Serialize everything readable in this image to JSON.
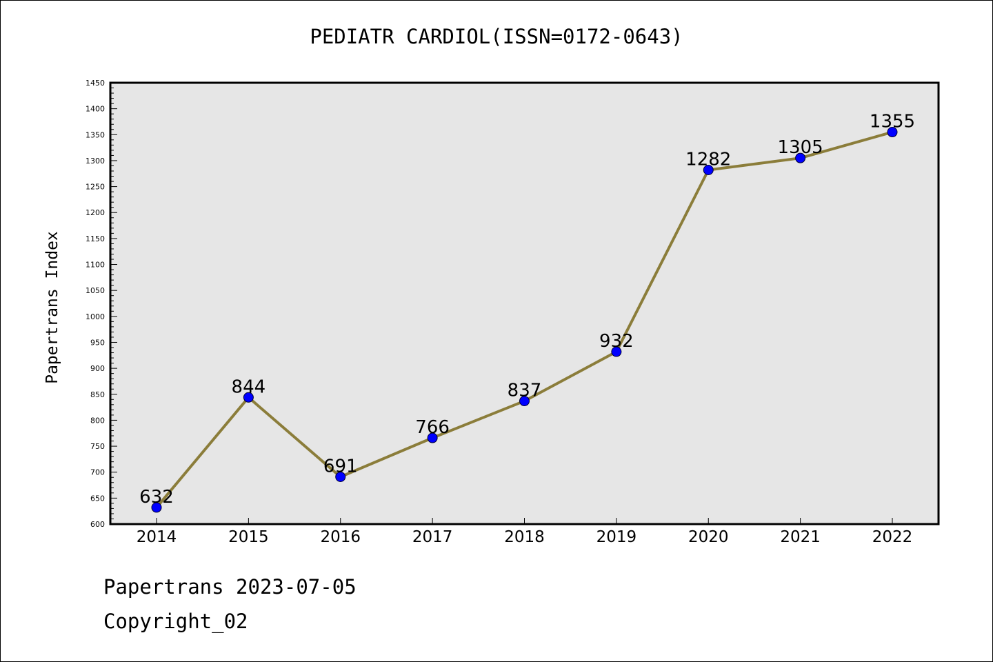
{
  "title": "PEDIATR CARDIOL(ISSN=0172-0643)",
  "footer": {
    "line1": "Papertrans 2023-07-05",
    "line2": "Copyright_02"
  },
  "colors": {
    "line": "#8B7D3A",
    "marker": "#0000FF",
    "plot_bg": "#E6E6E6"
  },
  "chart_data": {
    "type": "line",
    "title": "PEDIATR CARDIOL(ISSN=0172-0643)",
    "xlabel": "",
    "ylabel": "Papertrans Index",
    "categories": [
      "2014",
      "2015",
      "2016",
      "2017",
      "2018",
      "2019",
      "2020",
      "2021",
      "2022"
    ],
    "values": [
      632,
      844,
      691,
      766,
      837,
      932,
      1282,
      1305,
      1355
    ],
    "data_labels": [
      "632",
      "844",
      "691",
      "766",
      "837",
      "932",
      "1282",
      "1305",
      "1355"
    ],
    "ylim": [
      600,
      1450
    ],
    "yticks": [
      600,
      650,
      700,
      750,
      800,
      850,
      900,
      950,
      1000,
      1050,
      1100,
      1150,
      1200,
      1250,
      1300,
      1350,
      1400,
      1450
    ],
    "ytick_labels": [
      "600",
      "650",
      "700",
      "750",
      "800",
      "850",
      "900",
      "950",
      "1000",
      "1050",
      "1100",
      "1150",
      "1200",
      "1250",
      "1300",
      "1350",
      "1400",
      "1450"
    ],
    "grid": false,
    "legend": "none"
  }
}
